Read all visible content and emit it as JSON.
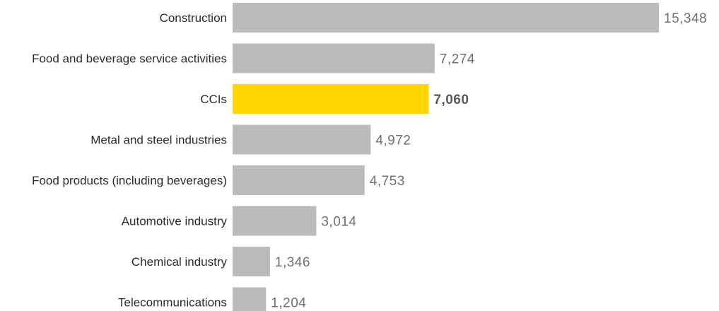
{
  "chart_data": {
    "type": "bar",
    "orientation": "horizontal",
    "categories": [
      "Construction",
      "Food and beverage service activities",
      "CCIs",
      "Metal and steel industries",
      "Food products (including beverages)",
      "Automotive industry",
      "Chemical industry",
      "Telecommunications"
    ],
    "values": [
      15348,
      7274,
      7060,
      4972,
      4753,
      3014,
      1346,
      1204
    ],
    "value_labels": [
      "15,348",
      "7,274",
      "7,060",
      "4,972",
      "4,753",
      "3,014",
      "1,346",
      "1,204"
    ],
    "highlight_index": 2,
    "xlim": [
      0,
      15348
    ],
    "grid": false,
    "legend": "none",
    "colors": {
      "bar": "#bbbbbb",
      "highlight": "#ffd400"
    }
  }
}
